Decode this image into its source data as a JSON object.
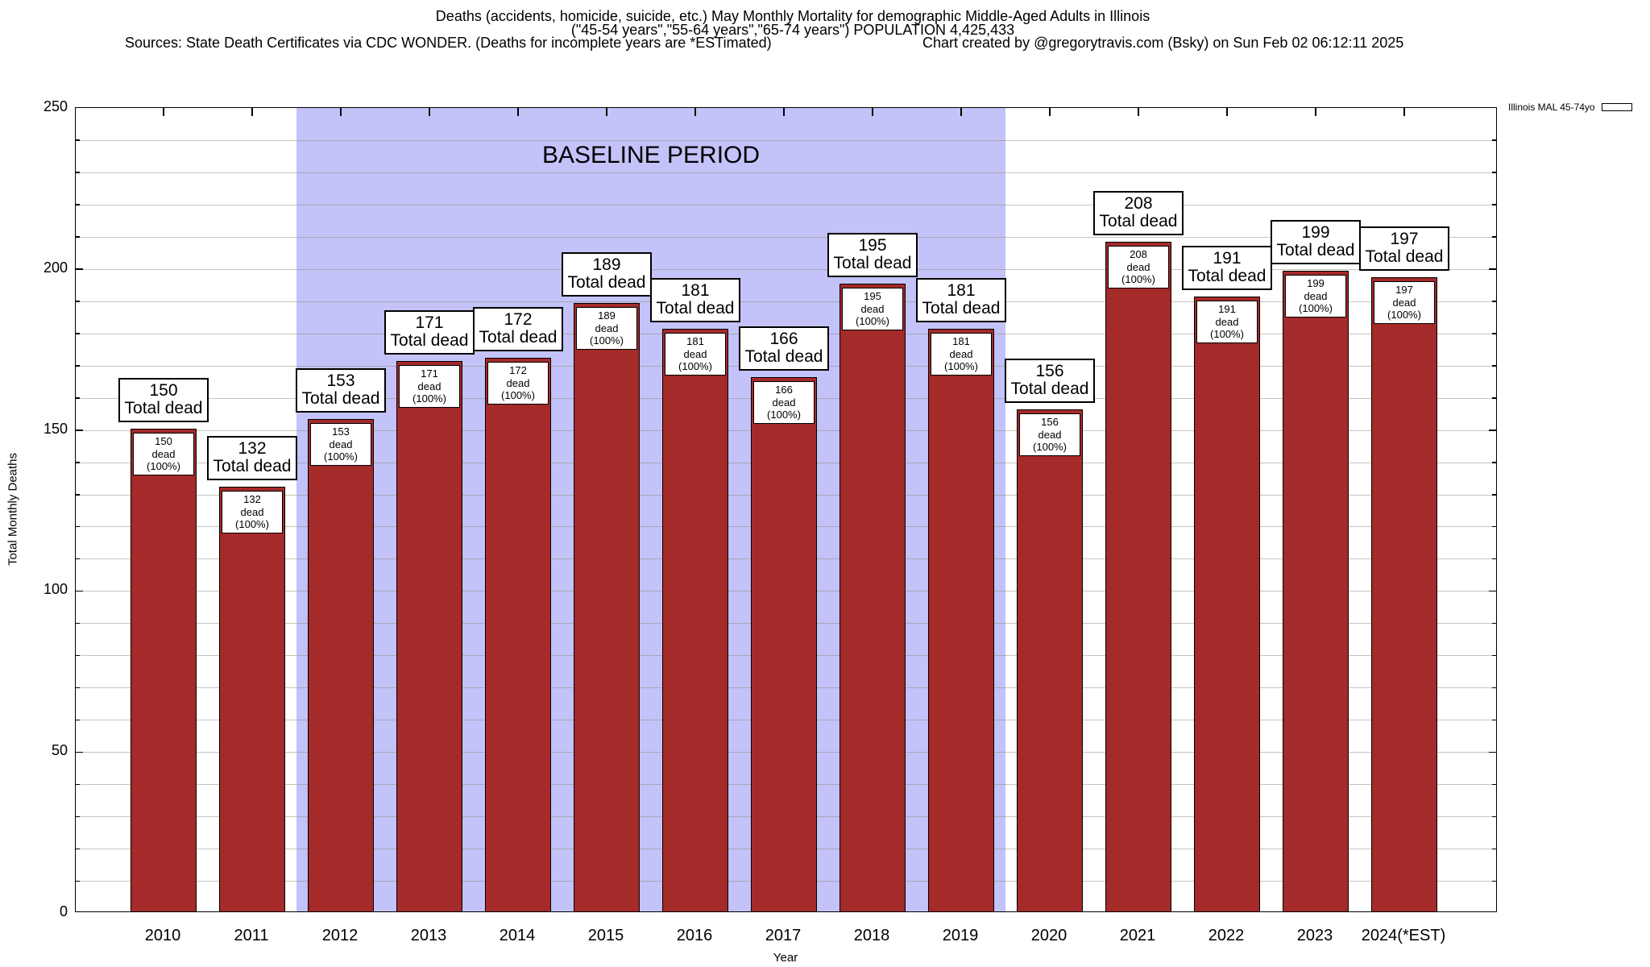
{
  "header": {
    "title_line1": "Deaths (accidents, homicide, suicide, etc.) May Monthly Mortality for demographic Middle-Aged Adults in Illinois",
    "title_line2": "(\"45-54 years\",\"55-64 years\",\"65-74 years\") POPULATION 4,425,433",
    "sources": "Sources: State Death Certificates via CDC WONDER. (Deaths for incomplete years are *ESTimated)",
    "credit": "Chart created by @gregorytravis.com (Bsky) on Sun Feb 02 06:12:11 2025"
  },
  "chart_data": {
    "type": "bar",
    "title": "Deaths (accidents, homicide, suicide, etc.) May Monthly Mortality for demographic Middle-Aged Adults in Illinois",
    "subtitle": "(\"45-54 years\",\"55-64 years\",\"65-74 years\") POPULATION 4,425,433",
    "categories": [
      "2010",
      "2011",
      "2012",
      "2013",
      "2014",
      "2015",
      "2016",
      "2017",
      "2018",
      "2019",
      "2020",
      "2021",
      "2022",
      "2023",
      "2024(*EST)"
    ],
    "values": [
      150,
      132,
      153,
      171,
      172,
      189,
      181,
      166,
      195,
      181,
      156,
      208,
      191,
      199,
      197
    ],
    "bar_top_label_suffix": "Total dead",
    "bar_inner_label_suffix": "dead (100%)",
    "xlabel": "Year",
    "ylabel": "Total Monthly Deaths",
    "ylim": [
      0,
      250
    ],
    "ytick_interval": 50,
    "grid_interval": 10,
    "grid": true,
    "colors": {
      "bar": "#a52a2a",
      "baseline_band": "#c3c3f9",
      "gridline_over_white": "#c8c8c8"
    },
    "baseline_band": {
      "label": "BASELINE PERIOD",
      "start_category": "2012",
      "end_category": "2019",
      "color": "#c3c3f9"
    },
    "legend": {
      "position": "top-right",
      "label": "Illinois MAL 45-74yo",
      "swatch_color": "#a52a2a"
    }
  }
}
